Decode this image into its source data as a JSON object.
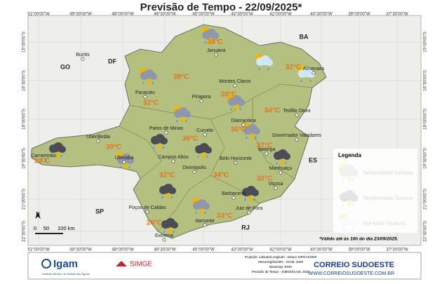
{
  "title": "Previsão de Tempo - 22/09/2025*",
  "longitudes": [
    "51°00'00\"W",
    "49°30'00\"W",
    "48°00'00\"W",
    "46°30'00\"W",
    "45°00'00\"W",
    "43°30'00\"W",
    "42°00'00\"W",
    "40°30'00\"W",
    "39°00'00\"W",
    "37°30'00\"W"
  ],
  "latitudes": [
    "15°00'00\"S",
    "16°30'00\"S",
    "18°00'00\"S",
    "19°30'00\"S",
    "21°00'00\"S",
    "22°30'00\"S"
  ],
  "states": [
    "GO",
    "DF",
    "BA",
    "ES",
    "SP",
    "RJ"
  ],
  "cities": [
    "Buritis",
    "Januária",
    "Montes Claros",
    "Almenara",
    "Pirapora",
    "Paracatu",
    "Diamantina",
    "Teófilo Otoni",
    "Patos de Minas",
    "Curvelo",
    "Uberlândia",
    "Governador Valadares",
    "Carneirinho",
    "Uberaba",
    "Campos Altos",
    "Ipatinga",
    "Belo Horizonte",
    "Divinópolis",
    "Manhuaçu",
    "Viçosa",
    "Barbacena",
    "Poços de Caldas",
    "Juiz de Fora",
    "Itamonte",
    "Extrema"
  ],
  "temperatures": [
    "38°C",
    "32°C",
    "39°C",
    "28°C",
    "32°C",
    "34°C",
    "30°C",
    "37°C",
    "36°C",
    "30°C",
    "30°C",
    "32°C",
    "34°C",
    "32°C",
    "33°C",
    "26°C"
  ],
  "north": "N",
  "scale": [
    "0",
    "50",
    "100 km"
  ],
  "legend": {
    "title": "Legenda",
    "items": [
      "Tempestade Isolada",
      "Tempestade Severa",
      "Sol entre Nuvens"
    ]
  },
  "note": "*Válido até às 10h do dia 23/09/2025.",
  "footer": {
    "igam": "Igam",
    "igam_sub": "Instituto Mineiro de Gestão das Águas",
    "simge": "SIMGE",
    "projection": [
      "Projeção: Latitude/Longitude - Datum SIRGAS2000",
      "Mesorregiões/MG - IGAM, 2009",
      "Basemap: ESRI",
      "Previsão de Tempo - SIMGE/IGAM, 2025"
    ],
    "brand": "CORREIO SUDOESTE",
    "site": "WWW.CORREIOSUDOESTE.COM.BR"
  }
}
